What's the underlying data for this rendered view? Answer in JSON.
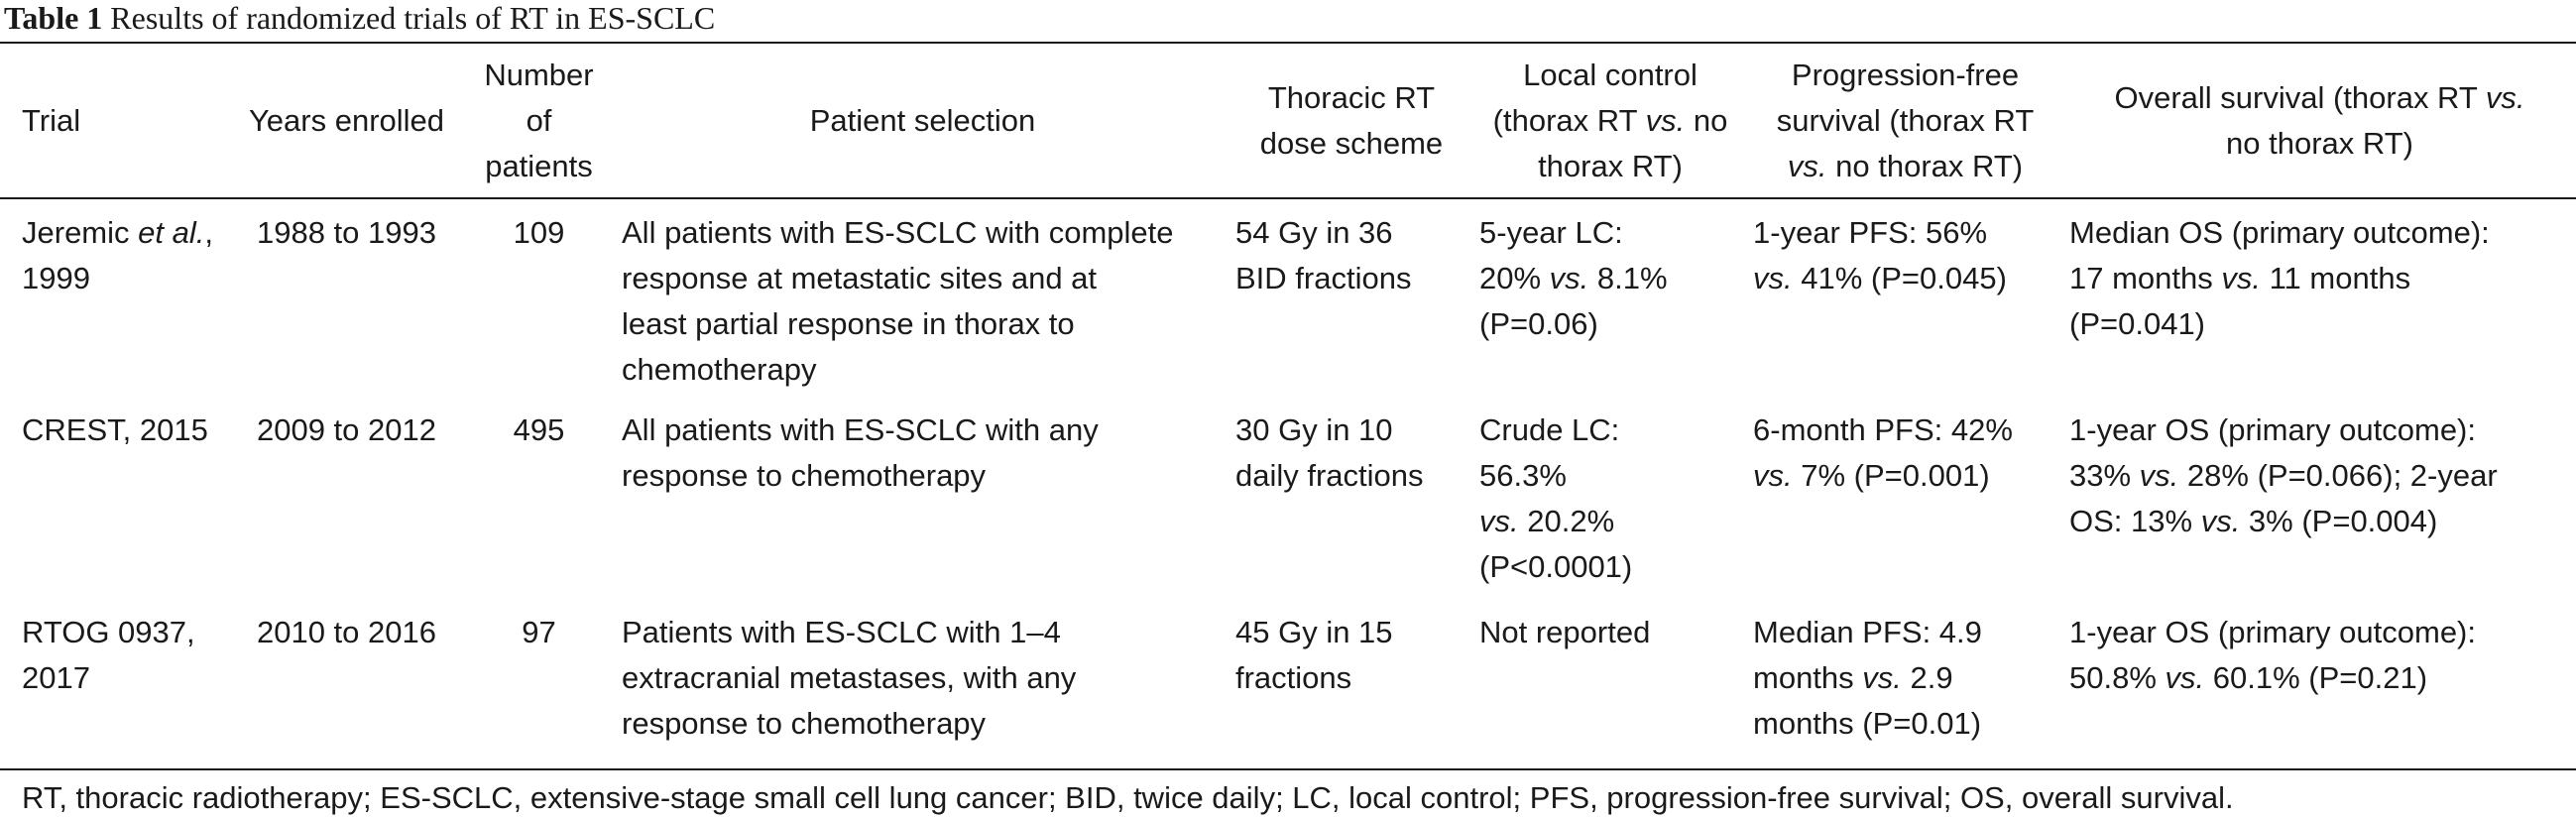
{
  "caption": {
    "label": "Table 1",
    "text": "Results of randomized trials of RT in ES-SCLC"
  },
  "headers": [
    [
      "Trial"
    ],
    [
      "Years enrolled"
    ],
    [
      "Number of",
      "patients"
    ],
    [
      "Patient selection"
    ],
    [
      "Thoracic RT",
      "dose scheme"
    ],
    [
      "Local control",
      "(thorax RT ",
      {
        "i": "vs."
      },
      " no",
      "thorax RT)"
    ],
    [
      "Progression-free",
      "survival (thorax RT",
      {
        "i": "vs."
      },
      " no thorax RT)"
    ],
    [
      "Overall survival (thorax RT ",
      {
        "i": "vs."
      },
      "no thorax RT)"
    ]
  ],
  "rows": [
    [
      [
        "Jeremic ",
        {
          "i": "et al."
        },
        ",",
        "1999"
      ],
      [
        "1988 to 1993"
      ],
      [
        "109"
      ],
      [
        "All patients with ES-SCLC with complete",
        "response at metastatic sites and at",
        "least partial response in thorax to",
        "chemotherapy"
      ],
      [
        "54 Gy in 36",
        "BID fractions"
      ],
      [
        "5-year LC:",
        "20% ",
        {
          "i": "vs."
        },
        " 8.1%",
        "(P=0.06)"
      ],
      [
        "1-year PFS: 56%",
        {
          "i": "vs."
        },
        " 41% (P=0.045)"
      ],
      [
        "Median OS (primary outcome):",
        "17 months ",
        {
          "i": "vs."
        },
        " 11 months",
        "(P=0.041)"
      ]
    ],
    [
      [
        "CREST, 2015"
      ],
      [
        "2009 to 2012"
      ],
      [
        "495"
      ],
      [
        "All patients with ES-SCLC with any",
        "response to chemotherapy"
      ],
      [
        "30 Gy in 10",
        "daily fractions"
      ],
      [
        "Crude LC:",
        "56.3%",
        {
          "i": "vs."
        },
        " 20.2%",
        "(P<0.0001)"
      ],
      [
        "6-month PFS: 42%",
        {
          "i": "vs."
        },
        " 7% (P=0.001)"
      ],
      [
        "1-year OS (primary outcome):",
        "33% ",
        {
          "i": "vs."
        },
        " 28% (P=0.066); 2-year",
        "OS: 13% ",
        {
          "i": "vs."
        },
        " 3% (P=0.004)"
      ]
    ],
    [
      [
        "RTOG 0937,",
        "2017"
      ],
      [
        "2010 to 2016"
      ],
      [
        "97"
      ],
      [
        "Patients with ES-SCLC with 1–4",
        "extracranial metastases, with any",
        "response to chemotherapy"
      ],
      [
        "45 Gy in 15",
        "fractions"
      ],
      [
        "Not reported"
      ],
      [
        "Median PFS: 4.9",
        "months ",
        {
          "i": "vs."
        },
        " 2.9",
        "months (P=0.01)"
      ],
      [
        "1-year OS (primary outcome):",
        "50.8% ",
        {
          "i": "vs."
        },
        " 60.1% (P=0.21)"
      ]
    ]
  ],
  "line_breaks": {
    "headers": [
      [],
      [],
      [
        1
      ],
      [],
      [
        1
      ],
      [
        1,
        4
      ],
      [
        1,
        2
      ],
      [
        2
      ]
    ],
    "rows": [
      [
        [
          3
        ],
        [],
        [],
        [
          1,
          2,
          3
        ],
        [
          1
        ],
        [
          1,
          4
        ],
        [
          1
        ],
        [
          1,
          4
        ]
      ],
      [
        [],
        [],
        [],
        [
          1
        ],
        [
          1
        ],
        [
          1,
          2,
          4
        ],
        [
          1
        ],
        [
          1,
          4
        ]
      ],
      [
        [
          1
        ],
        [],
        [],
        [
          1,
          2
        ],
        [
          1
        ],
        [],
        [
          1,
          4
        ],
        [
          1
        ]
      ]
    ]
  },
  "footnote": "RT, thoracic radiotherapy; ES-SCLC, extensive-stage small cell lung cancer; BID, twice daily; LC, local control; PFS, progression-free survival; OS, overall survival."
}
